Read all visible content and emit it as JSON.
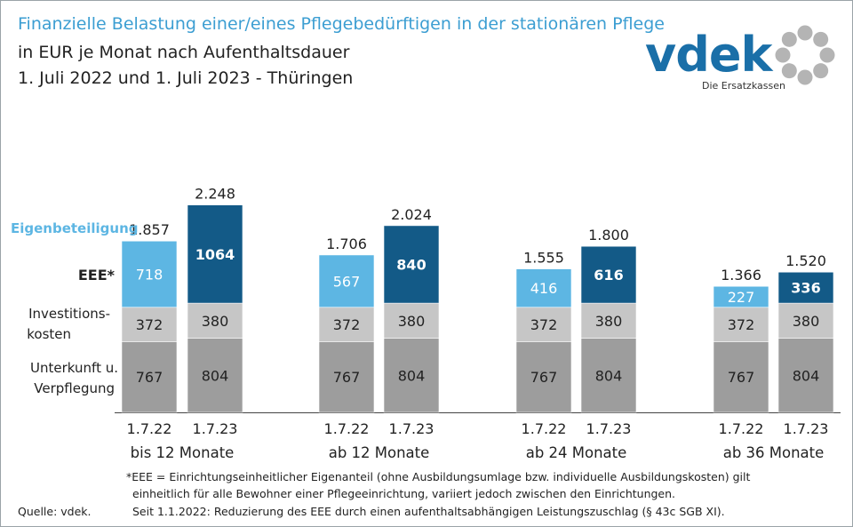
{
  "title": {
    "line1": "Finanzielle Belastung einer/eines Pflegebedürftigen in der stationären Pflege",
    "line2": "in EUR je Monat nach Aufenthaltsdauer",
    "line3": "1. Juli 2022 und 1. Juli 2023 - Thüringen"
  },
  "logo": {
    "brand": "vdek",
    "tagline": "Die Ersatzkassen"
  },
  "chart_data": {
    "type": "bar",
    "stacked": true,
    "groups": [
      "bis 12 Monate",
      "ab 12 Monate",
      "ab 24 Monate",
      "ab 36 Monate"
    ],
    "categories": [
      "1.7.22",
      "1.7.23"
    ],
    "series": [
      {
        "name": "Unterkunft u. Verpflegung",
        "values": [
          [
            767,
            804
          ],
          [
            767,
            804
          ],
          [
            767,
            804
          ],
          [
            767,
            804
          ]
        ]
      },
      {
        "name": "Investitions-kosten",
        "values": [
          [
            372,
            380
          ],
          [
            372,
            380
          ],
          [
            372,
            380
          ],
          [
            372,
            380
          ]
        ]
      },
      {
        "name": "EEE*",
        "values": [
          [
            718,
            1064
          ],
          [
            567,
            840
          ],
          [
            416,
            616
          ],
          [
            227,
            336
          ]
        ]
      }
    ],
    "totals": [
      [
        "1.857",
        "2.248"
      ],
      [
        "1.706",
        "2.024"
      ],
      [
        "1.555",
        "1.800"
      ],
      [
        "1.366",
        "1.520"
      ]
    ],
    "labels": {
      "eigen": "Eigenbeteiligung",
      "eee": "EEE*",
      "invest": [
        "Investitions-",
        "kosten"
      ],
      "unterkunft": [
        "Unterkunft u.",
        "Verpflegung"
      ]
    },
    "colors": {
      "unterkunft": "#9d9d9d",
      "invest": "#c6c6c6",
      "eee_2022": "#5db6e3",
      "eee_2023": "#135a87",
      "eigen_label": "#5db6e3"
    }
  },
  "footnote": {
    "line1": "*EEE = Einrichtungseinheitlicher  Eigenanteil (ohne Ausbildungsumlage bzw. individuelle Ausbildungskosten) gilt",
    "line2": "einheitlich für alle Bewohner einer Pflegeeinrichtung, variiert jedoch zwischen den Einrichtungen.",
    "line3": "Seit 1.1.2022:  Reduzierung des EEE durch einen aufenthaltsabhängigen Leistungszuschlag  (§ 43c SGB XI)."
  },
  "source": "Quelle: vdek."
}
